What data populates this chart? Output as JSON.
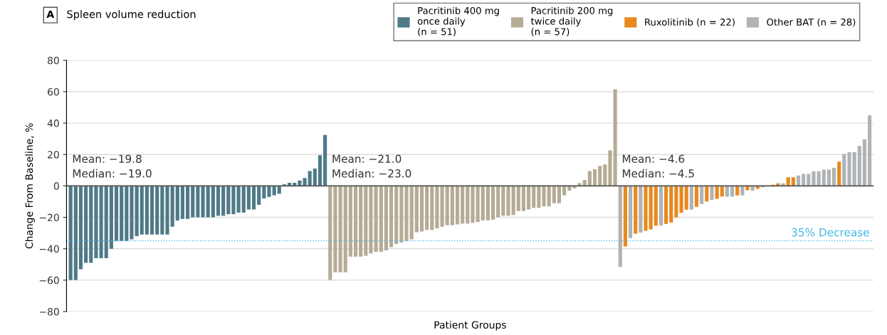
{
  "chart_data": {
    "type": "bar",
    "title": "Spleen volume reduction",
    "xlabel": "Patient Groups",
    "ylabel": "Change From Baseline, %",
    "categories": [
      null,
      null,
      null,
      null,
      null,
      null,
      null,
      null,
      null,
      null,
      null,
      null,
      null,
      null,
      null,
      null,
      null,
      null,
      null,
      null,
      null,
      null,
      null,
      null,
      null,
      null,
      null,
      null,
      null,
      null,
      null,
      null,
      null,
      null,
      null,
      null,
      null,
      null,
      null,
      null,
      null,
      null,
      null,
      null,
      null,
      null,
      null,
      null,
      null,
      null,
      null,
      null,
      null,
      null,
      null,
      null,
      null,
      null,
      null,
      null,
      null,
      null,
      null,
      null,
      null,
      null,
      null,
      null,
      null,
      null,
      null,
      null,
      null,
      null,
      null,
      null,
      null,
      null,
      null,
      null,
      null,
      null,
      null,
      null,
      null,
      null,
      null,
      null,
      null,
      null,
      null,
      null,
      null,
      null,
      null,
      null,
      null,
      null,
      null,
      null,
      null,
      null,
      null,
      null,
      null,
      null,
      null,
      null,
      null,
      null,
      null,
      null,
      null,
      null,
      null,
      null,
      null,
      null,
      null,
      null,
      null,
      null,
      null,
      null,
      null,
      null,
      null,
      null,
      null,
      null,
      null,
      null,
      null,
      null,
      null,
      null,
      null,
      null,
      null,
      null,
      null,
      null,
      null,
      null,
      null,
      null,
      null,
      null,
      null,
      null,
      null,
      null,
      null,
      null,
      null,
      null,
      null,
      null
    ],
    "series": [
      {
        "name": "Pacritinib 400 mg\nonce daily\n(n = 51)",
        "color": "#4f7a88",
        "values": [
          -60,
          -60,
          -53,
          -49,
          -49,
          -46,
          -46,
          -46,
          -40,
          -35,
          -35,
          -35,
          -34,
          -32,
          -31,
          -31,
          -31,
          -31,
          -31,
          -31,
          -26,
          -22,
          -21,
          -21,
          -20,
          -20,
          -20,
          -20,
          -20,
          -19,
          -19,
          -18,
          -18,
          -17,
          -17,
          -15,
          -15,
          -12,
          -8,
          -7,
          -6,
          -5,
          1,
          2,
          2,
          3.5,
          5,
          9.5,
          11,
          19.5,
          32.5,
          null,
          null,
          null,
          null,
          null,
          null,
          null,
          null,
          null,
          null,
          null,
          null,
          null,
          null,
          null,
          null,
          null,
          null,
          null,
          null,
          null,
          null,
          null,
          null,
          null,
          null,
          null,
          null,
          null,
          null,
          null,
          null,
          null,
          null,
          null,
          null,
          null,
          null,
          null,
          null,
          null,
          null,
          null,
          null,
          null,
          null,
          null,
          null,
          null,
          null,
          null,
          null,
          null,
          null,
          null,
          null,
          null,
          null,
          null,
          null,
          null,
          null,
          null,
          null,
          null,
          null,
          null,
          null,
          null,
          null,
          null,
          null,
          null,
          null,
          null,
          null,
          null,
          null,
          null,
          null,
          null,
          null,
          null,
          null,
          null,
          null,
          null,
          null,
          null,
          null,
          null,
          null,
          null,
          null,
          null,
          null,
          null,
          null,
          null,
          null,
          null,
          null,
          null,
          null,
          null,
          null,
          null
        ]
      },
      {
        "name": "Pacritinib 200 mg\ntwice daily\n(n = 57)",
        "color": "#b5ab96",
        "values": [
          null,
          null,
          null,
          null,
          null,
          null,
          null,
          null,
          null,
          null,
          null,
          null,
          null,
          null,
          null,
          null,
          null,
          null,
          null,
          null,
          null,
          null,
          null,
          null,
          null,
          null,
          null,
          null,
          null,
          null,
          null,
          null,
          null,
          null,
          null,
          null,
          null,
          null,
          null,
          null,
          null,
          null,
          null,
          null,
          null,
          null,
          null,
          null,
          null,
          null,
          null,
          -60,
          -55,
          -55,
          -55,
          -45,
          -45,
          -45,
          -44.5,
          -43,
          -42,
          -42,
          -41,
          -39,
          -37,
          -36,
          -35,
          -34,
          -29.5,
          -29,
          -28,
          -28,
          -27,
          -26,
          -25,
          -25,
          -24.5,
          -24,
          -24,
          -23.5,
          -23,
          -22,
          -22,
          -21.5,
          -20,
          -19,
          -19,
          -18.5,
          -16,
          -16,
          -15,
          -14,
          -14,
          -13,
          -13,
          -11,
          -11,
          -6,
          -3,
          -1.5,
          1.8,
          3.8,
          9.5,
          10.6,
          12.7,
          13.7,
          22.7,
          61.5,
          null,
          null,
          null,
          null,
          null,
          null,
          null,
          null,
          null,
          null,
          null,
          null,
          null,
          null,
          null,
          null,
          null,
          null,
          null,
          null,
          null,
          null,
          null,
          null,
          null,
          null,
          null,
          null,
          null,
          null,
          null,
          null,
          null,
          null,
          null,
          null,
          null,
          null,
          null,
          null,
          null,
          null,
          null,
          null,
          null,
          null,
          null,
          null,
          null,
          null
        ]
      },
      {
        "name": "Ruxolitinib (n = 22)",
        "color": "#e8891f",
        "values": [
          null,
          null,
          null,
          null,
          null,
          null,
          null,
          null,
          null,
          null,
          null,
          null,
          null,
          null,
          null,
          null,
          null,
          null,
          null,
          null,
          null,
          null,
          null,
          null,
          null,
          null,
          null,
          null,
          null,
          null,
          null,
          null,
          null,
          null,
          null,
          null,
          null,
          null,
          null,
          null,
          null,
          null,
          null,
          null,
          null,
          null,
          null,
          null,
          null,
          null,
          null,
          null,
          null,
          null,
          null,
          null,
          null,
          null,
          null,
          null,
          null,
          null,
          null,
          null,
          null,
          null,
          null,
          null,
          null,
          null,
          null,
          null,
          null,
          null,
          null,
          null,
          null,
          null,
          null,
          null,
          null,
          null,
          null,
          null,
          null,
          null,
          null,
          null,
          null,
          null,
          null,
          null,
          null,
          null,
          null,
          null,
          null,
          null,
          null,
          null,
          null,
          null,
          null,
          null,
          null,
          null,
          null,
          null,
          null,
          -38.6,
          null,
          -30.4,
          null,
          -28.6,
          -27.7,
          -25.3,
          null,
          -24.2,
          -23.3,
          -20.1,
          -17.1,
          -15.1,
          null,
          -13.3,
          null,
          -9.9,
          null,
          -8.2,
          -6.8,
          null,
          null,
          -6,
          null,
          -2.8,
          null,
          -1.8,
          null,
          null,
          0.7,
          1.6,
          null,
          5.5,
          5.5,
          null,
          null,
          null,
          null,
          null,
          null,
          null,
          null,
          15.5,
          null,
          null,
          null,
          null,
          null,
          null
        ]
      },
      {
        "name": "Other BAT (n = 28)",
        "color": "#b0b3b6",
        "values": [
          null,
          null,
          null,
          null,
          null,
          null,
          null,
          null,
          null,
          null,
          null,
          null,
          null,
          null,
          null,
          null,
          null,
          null,
          null,
          null,
          null,
          null,
          null,
          null,
          null,
          null,
          null,
          null,
          null,
          null,
          null,
          null,
          null,
          null,
          null,
          null,
          null,
          null,
          null,
          null,
          null,
          null,
          null,
          null,
          null,
          null,
          null,
          null,
          null,
          null,
          null,
          null,
          null,
          null,
          null,
          null,
          null,
          null,
          null,
          null,
          null,
          null,
          null,
          null,
          null,
          null,
          null,
          null,
          null,
          null,
          null,
          null,
          null,
          null,
          null,
          null,
          null,
          null,
          null,
          null,
          null,
          null,
          null,
          null,
          null,
          null,
          null,
          null,
          null,
          null,
          null,
          null,
          null,
          null,
          null,
          null,
          null,
          null,
          null,
          null,
          null,
          null,
          null,
          null,
          null,
          null,
          null,
          null,
          -51.6,
          null,
          -33.2,
          null,
          -29.7,
          null,
          null,
          null,
          -25.3,
          null,
          null,
          null,
          null,
          null,
          -15.1,
          null,
          -11.6,
          null,
          -8.9,
          null,
          null,
          -6.8,
          -6.8,
          null,
          -6,
          null,
          -3.1,
          null,
          -0.8,
          null,
          null,
          null,
          1.6,
          null,
          null,
          6.6,
          7.7,
          7.7,
          9.3,
          9.3,
          10.4,
          10.4,
          11.5,
          null,
          20.3,
          21.5,
          21.6,
          25.5,
          29.7,
          44.9
        ]
      }
    ],
    "ylim": [
      -80,
      80
    ],
    "yticks": [
      {
        "value": -80,
        "label": "−80"
      },
      {
        "value": -60,
        "label": "−60"
      },
      {
        "value": -40,
        "label": "−40"
      },
      {
        "value": -20,
        "label": "−20"
      },
      0,
      20,
      40,
      60,
      80
    ],
    "grid": "y",
    "legend": "top right",
    "ref_lines": [
      {
        "axis": "y",
        "value": -35,
        "label": "35% Decrease",
        "color": "#3cb8e8",
        "line_style": "dotted"
      }
    ],
    "annotations": [
      "A",
      "Mean: −19.8\nMedian: −19.0",
      "Mean: −21.0\nMedian: −23.0",
      "Mean: −4.6\nMedian: −4.5"
    ]
  }
}
